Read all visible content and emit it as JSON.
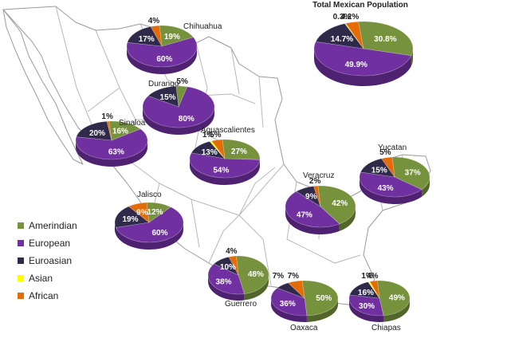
{
  "colors": {
    "Amerindian": "#76923c",
    "European": "#7030a0",
    "Euroasian": "#2f2a4a",
    "Asian": "#ffff00",
    "African": "#e36c09"
  },
  "legend": [
    {
      "name": "Amerindian"
    },
    {
      "name": "European"
    },
    {
      "name": "Euroasian"
    },
    {
      "name": "Asian"
    },
    {
      "name": "African"
    }
  ],
  "chart_data": [
    {
      "type": "pie",
      "title": "Total Mexican Population",
      "slices": [
        {
          "name": "Amerindian",
          "value": 30.8,
          "label": "30.8%"
        },
        {
          "name": "European",
          "value": 49.9,
          "label": "49.9%"
        },
        {
          "name": "Euroasian",
          "value": 14.7,
          "label": "14.7%"
        },
        {
          "name": "Asian",
          "value": 0.3,
          "label": "0.3%"
        },
        {
          "name": "African",
          "value": 4.2,
          "label": "4.2%"
        }
      ]
    },
    {
      "type": "pie",
      "title": "Chihuahua",
      "slices": [
        {
          "name": "Amerindian",
          "value": 19,
          "label": "19%"
        },
        {
          "name": "European",
          "value": 60,
          "label": "60%"
        },
        {
          "name": "Euroasian",
          "value": 17,
          "label": "17%"
        },
        {
          "name": "African",
          "value": 4,
          "label": "4%"
        }
      ]
    },
    {
      "type": "pie",
      "title": "Durango",
      "slices": [
        {
          "name": "Amerindian",
          "value": 5,
          "label": "5%"
        },
        {
          "name": "European",
          "value": 80,
          "label": "80%"
        },
        {
          "name": "Euroasian",
          "value": 15,
          "label": "15%"
        }
      ]
    },
    {
      "type": "pie",
      "title": "Sinaloa",
      "slices": [
        {
          "name": "Amerindian",
          "value": 16,
          "label": "16%"
        },
        {
          "name": "European",
          "value": 63,
          "label": "63%"
        },
        {
          "name": "Euroasian",
          "value": 20,
          "label": "20%"
        },
        {
          "name": "African",
          "value": 1,
          "label": "1%"
        }
      ]
    },
    {
      "type": "pie",
      "title": "Aguascalientes",
      "slices": [
        {
          "name": "Amerindian",
          "value": 27,
          "label": "27%"
        },
        {
          "name": "European",
          "value": 54,
          "label": "54%"
        },
        {
          "name": "Euroasian",
          "value": 13,
          "label": "13%"
        },
        {
          "name": "Asian",
          "value": 1,
          "label": "1%"
        },
        {
          "name": "African",
          "value": 5,
          "label": "5%"
        }
      ]
    },
    {
      "type": "pie",
      "title": "Yucatan",
      "slices": [
        {
          "name": "Amerindian",
          "value": 37,
          "label": "37%"
        },
        {
          "name": "European",
          "value": 43,
          "label": "43%"
        },
        {
          "name": "Euroasian",
          "value": 15,
          "label": "15%"
        },
        {
          "name": "African",
          "value": 5,
          "label": "5%"
        }
      ]
    },
    {
      "type": "pie",
      "title": "Veracruz",
      "slices": [
        {
          "name": "Amerindian",
          "value": 42,
          "label": "42%"
        },
        {
          "name": "European",
          "value": 47,
          "label": "47%"
        },
        {
          "name": "Euroasian",
          "value": 9,
          "label": "9%"
        },
        {
          "name": "African",
          "value": 2,
          "label": "2%"
        }
      ]
    },
    {
      "type": "pie",
      "title": "Jalisco",
      "slices": [
        {
          "name": "Amerindian",
          "value": 12,
          "label": "12%"
        },
        {
          "name": "European",
          "value": 60,
          "label": "60%"
        },
        {
          "name": "Euroasian",
          "value": 19,
          "label": "19%"
        },
        {
          "name": "African",
          "value": 9,
          "label": "9%"
        }
      ]
    },
    {
      "type": "pie",
      "title": "Guerrero",
      "slices": [
        {
          "name": "Amerindian",
          "value": 48,
          "label": "48%"
        },
        {
          "name": "European",
          "value": 38,
          "label": "38%"
        },
        {
          "name": "Euroasian",
          "value": 10,
          "label": "10%"
        },
        {
          "name": "African",
          "value": 4,
          "label": "4%"
        }
      ]
    },
    {
      "type": "pie",
      "title": "Oaxaca",
      "slices": [
        {
          "name": "Amerindian",
          "value": 50,
          "label": "50%"
        },
        {
          "name": "European",
          "value": 36,
          "label": "36%"
        },
        {
          "name": "Euroasian",
          "value": 7,
          "label": "7%"
        },
        {
          "name": "African",
          "value": 7,
          "label": "7%"
        }
      ]
    },
    {
      "type": "pie",
      "title": "Chiapas",
      "slices": [
        {
          "name": "Amerindian",
          "value": 49,
          "label": "49%"
        },
        {
          "name": "European",
          "value": 30,
          "label": "30%"
        },
        {
          "name": "Euroasian",
          "value": 16,
          "label": "16%"
        },
        {
          "name": "Asian",
          "value": 1,
          "label": "1%"
        },
        {
          "name": "African",
          "value": 4,
          "label": "4%"
        }
      ]
    }
  ]
}
